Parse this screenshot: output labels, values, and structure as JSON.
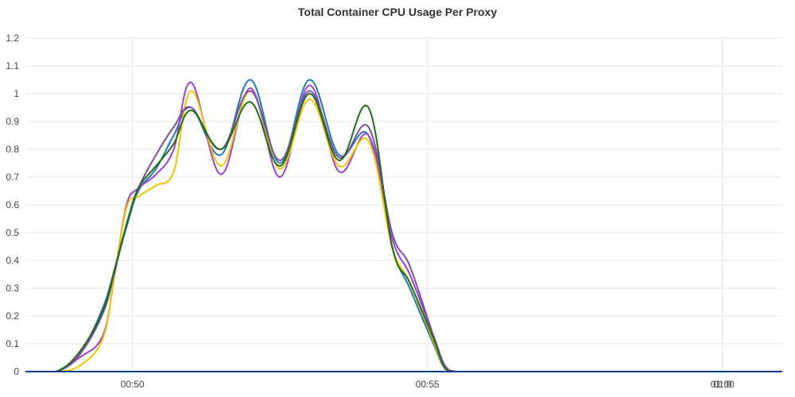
{
  "chart_data": {
    "type": "line",
    "title": "Total Container CPU Usage Per Proxy",
    "xlabel": "",
    "ylabel": "",
    "ylim": [
      0,
      1.2
    ],
    "xlim": [
      "00:48:12",
      "01:01:00"
    ],
    "x_ticks": [
      "00:50",
      "00:55",
      "01:00",
      "01:0"
    ],
    "y_ticks": [
      "0",
      "0.1",
      "0.2",
      "0.3",
      "0.4",
      "0.5",
      "0.6",
      "0.7",
      "0.8",
      "0.9",
      "1",
      "1.1",
      "1.2"
    ],
    "grid": true,
    "legend": "none",
    "x": [
      "00:48:12",
      "00:48:42",
      "00:49:06",
      "00:49:30",
      "00:49:42",
      "00:49:54",
      "00:50:06",
      "00:50:24",
      "00:50:42",
      "00:51:00",
      "00:51:30",
      "00:52:00",
      "00:52:30",
      "00:53:00",
      "00:53:30",
      "00:54:00",
      "00:54:24",
      "00:54:42",
      "00:55:06",
      "00:55:18",
      "00:55:30",
      "00:56:00",
      "00:58:00",
      "01:00:00",
      "01:01:00"
    ],
    "series": [
      {
        "color": "#1f77b4",
        "values": [
          0,
          0,
          0.06,
          0.23,
          0.37,
          0.52,
          0.65,
          0.73,
          0.85,
          0.95,
          0.78,
          1.05,
          0.75,
          1.05,
          0.78,
          0.85,
          0.45,
          0.3,
          0.1,
          0.01,
          0,
          0,
          0,
          0,
          0
        ]
      },
      {
        "color": "#9c3fd6",
        "values": [
          0,
          0,
          0.05,
          0.13,
          0.35,
          0.6,
          0.66,
          0.71,
          0.8,
          1.04,
          0.71,
          1.02,
          0.7,
          1.03,
          0.72,
          0.85,
          0.48,
          0.35,
          0.13,
          0.02,
          0,
          0,
          0,
          0,
          0
        ]
      },
      {
        "color": "#f2c500",
        "values": [
          0,
          0,
          0.02,
          0.12,
          0.35,
          0.59,
          0.63,
          0.67,
          0.72,
          1.01,
          0.74,
          1.01,
          0.73,
          0.98,
          0.74,
          0.83,
          0.45,
          0.32,
          0.11,
          0.01,
          0,
          0,
          0,
          0,
          0
        ]
      },
      {
        "color": "#7b4fa6",
        "values": [
          0,
          0,
          0.06,
          0.21,
          0.36,
          0.53,
          0.66,
          0.78,
          0.88,
          0.95,
          0.8,
          1.01,
          0.76,
          1.01,
          0.77,
          0.88,
          0.5,
          0.38,
          0.13,
          0.02,
          0,
          0,
          0,
          0,
          0
        ]
      },
      {
        "color": "#1f6e12",
        "values": [
          0,
          0,
          0.07,
          0.22,
          0.37,
          0.53,
          0.66,
          0.74,
          0.82,
          0.94,
          0.8,
          0.97,
          0.74,
          1.0,
          0.76,
          0.95,
          0.45,
          0.32,
          0.12,
          0.01,
          0,
          0,
          0,
          0,
          0
        ]
      },
      {
        "color": "#0b3d91",
        "values": [
          0,
          0,
          0,
          0,
          0,
          0,
          0,
          0,
          0,
          0,
          0,
          0,
          0,
          0,
          0,
          0,
          0,
          0,
          0,
          0,
          0,
          0,
          0,
          0,
          0
        ]
      }
    ]
  }
}
